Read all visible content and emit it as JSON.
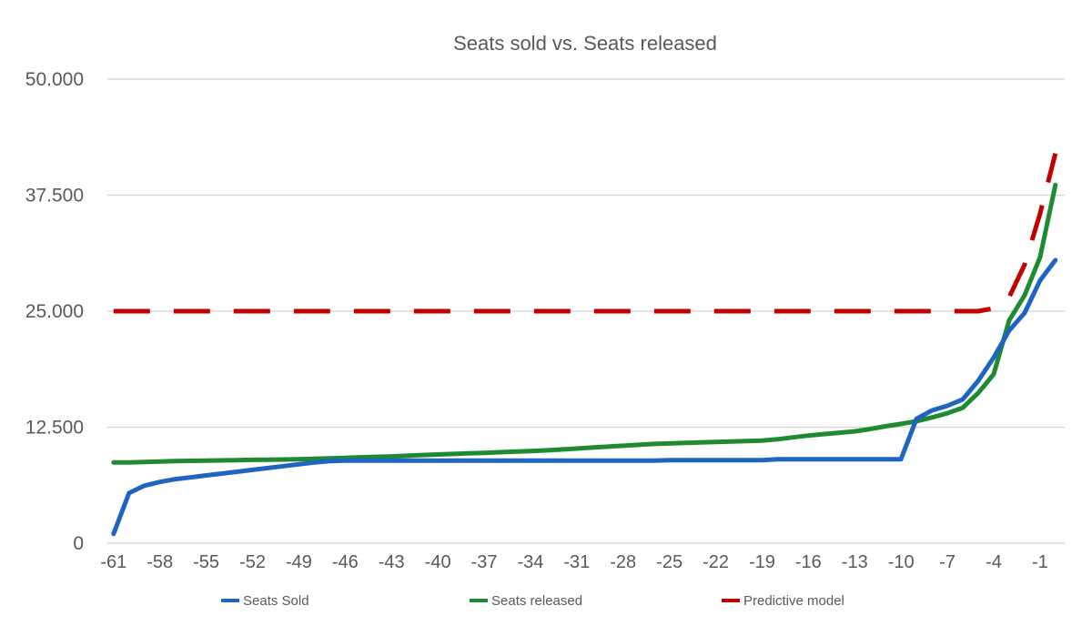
{
  "chart_data": {
    "type": "line",
    "title": "Seats sold vs. Seats released",
    "xlabel": "",
    "ylabel": "",
    "x": [
      -61,
      -60,
      -59,
      -58,
      -57,
      -56,
      -55,
      -54,
      -53,
      -52,
      -51,
      -50,
      -49,
      -48,
      -47,
      -46,
      -45,
      -44,
      -43,
      -42,
      -41,
      -40,
      -39,
      -38,
      -37,
      -36,
      -35,
      -34,
      -33,
      -32,
      -31,
      -30,
      -29,
      -28,
      -27,
      -26,
      -25,
      -24,
      -23,
      -22,
      -21,
      -20,
      -19,
      -18,
      -17,
      -16,
      -15,
      -14,
      -13,
      -12,
      -11,
      -10,
      -9,
      -8,
      -7,
      -6,
      -5,
      -4,
      -3,
      -2,
      -1,
      0
    ],
    "x_tick_labels": [
      "-61",
      "-58",
      "-55",
      "-52",
      "-49",
      "-46",
      "-43",
      "-40",
      "-37",
      "-34",
      "-31",
      "-28",
      "-25",
      "-22",
      "-19",
      "-16",
      "-13",
      "-10",
      "-7",
      "-4",
      "-1"
    ],
    "x_tick_values": [
      -61,
      -58,
      -55,
      -52,
      -49,
      -46,
      -43,
      -40,
      -37,
      -34,
      -31,
      -28,
      -25,
      -22,
      -19,
      -16,
      -13,
      -10,
      -7,
      -4,
      -1
    ],
    "xlim": [
      -61.4,
      0.6
    ],
    "y_tick_labels": [
      "0",
      "12.500",
      "25.000",
      "37.500",
      "50.000"
    ],
    "y_tick_values": [
      0,
      12500,
      25000,
      37500,
      50000
    ],
    "ylim": [
      0,
      50000
    ],
    "grid": true,
    "legend_position": "bottom",
    "series": [
      {
        "name": "Seats Sold",
        "color": "#1f64c0",
        "style": "solid",
        "values": [
          1000,
          5400,
          6200,
          6600,
          6900,
          7100,
          7300,
          7500,
          7700,
          7900,
          8100,
          8300,
          8500,
          8700,
          8850,
          8900,
          8900,
          8900,
          8900,
          8900,
          8900,
          8900,
          8900,
          8900,
          8900,
          8900,
          8900,
          8900,
          8900,
          8900,
          8900,
          8900,
          8900,
          8900,
          8900,
          8900,
          8950,
          8950,
          8950,
          8950,
          8950,
          8950,
          8950,
          9050,
          9050,
          9050,
          9050,
          9050,
          9050,
          9050,
          9050,
          9050,
          13400,
          14300,
          14800,
          15500,
          17500,
          20000,
          22900,
          24800,
          28300,
          30500
        ]
      },
      {
        "name": "Seats released",
        "color": "#1f8a32",
        "style": "solid",
        "values": [
          8700,
          8700,
          8750,
          8800,
          8850,
          8870,
          8900,
          8920,
          8950,
          8980,
          9000,
          9020,
          9050,
          9100,
          9150,
          9200,
          9250,
          9300,
          9350,
          9420,
          9500,
          9560,
          9620,
          9680,
          9740,
          9800,
          9860,
          9920,
          10000,
          10100,
          10200,
          10300,
          10400,
          10500,
          10600,
          10700,
          10750,
          10800,
          10850,
          10900,
          10950,
          11000,
          11050,
          11200,
          11400,
          11600,
          11750,
          11900,
          12050,
          12300,
          12600,
          12850,
          13150,
          13550,
          14000,
          14600,
          16200,
          18200,
          24000,
          26700,
          30800,
          38600
        ]
      },
      {
        "name": "Predictive model",
        "color": "#c00000",
        "style": "dashed",
        "values": [
          25000,
          25000,
          25000,
          25000,
          25000,
          25000,
          25000,
          25000,
          25000,
          25000,
          25000,
          25000,
          25000,
          25000,
          25000,
          25000,
          25000,
          25000,
          25000,
          25000,
          25000,
          25000,
          25000,
          25000,
          25000,
          25000,
          25000,
          25000,
          25000,
          25000,
          25000,
          25000,
          25000,
          25000,
          25000,
          25000,
          25000,
          25000,
          25000,
          25000,
          25000,
          25000,
          25000,
          25000,
          25000,
          25000,
          25000,
          25000,
          25000,
          25000,
          25000,
          25000,
          25000,
          25000,
          25000,
          25000,
          25000,
          25300,
          26500,
          30000,
          35500,
          42000
        ]
      }
    ]
  }
}
